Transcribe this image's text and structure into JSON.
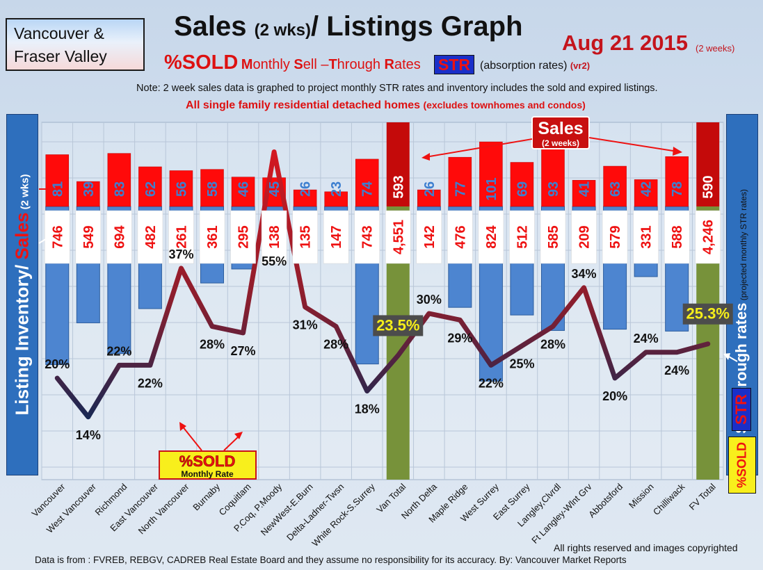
{
  "header": {
    "region_line1": "Vancouver &",
    "region_line2": "Fraser Valley",
    "title_part1": "Sales ",
    "title_small": "(2 wks)",
    "title_part2": "/ Listings Graph",
    "date": "Aug 21 2015",
    "date_note": "(2 weeks)",
    "subtitle_pct": "%SOLD",
    "subtitle_m": "M",
    "subtitle_onthly": "onthly ",
    "subtitle_s": "S",
    "subtitle_ell": "ell –",
    "subtitle_t": "T",
    "subtitle_hrough": "hrough ",
    "subtitle_r": "R",
    "subtitle_ates": "ates",
    "str_label": "STR",
    "absorption": "(absorption rates)",
    "version": "(vr2)",
    "note": "Note: 2 week sales data is graphed to project monthly STR rates and inventory includes the sold and expired listings.",
    "subnote_main": "All single family residential detached homes ",
    "subnote_small": "(excludes townhomes and condos)"
  },
  "axes": {
    "left_part1": "Listing Inventory/ ",
    "left_sales": "Sales",
    "left_small": " (2  wks)",
    "right_main": "Sell-through rates",
    "right_proj": " (projected monthly STR rates)",
    "right_str": "STR",
    "right_sold": "%SOLD"
  },
  "callouts": {
    "sales_title": "Sales",
    "sales_sub": "(2 weeks)",
    "sold_title": "%SOLD",
    "sold_sub": "Monthly Rate"
  },
  "footer": {
    "copyright": "All rights reserved and  images copyrighted",
    "source": "Data is from : FVREB, REBGV, CADREB Real Estate Board and they assume  no responsibility  for its accuracy. By: Vancouver Market Reports"
  },
  "colors": {
    "sales": "#ff0a0a",
    "sales_total": "#c40a0a",
    "inventory": "#4d85d0",
    "inventory_total": "#77923a",
    "line_high": "#c8202a",
    "line_low": "#1b2a55",
    "grid": "#b8c6d8"
  },
  "chart_data": {
    "type": "bar",
    "categories": [
      "Vancouver",
      "West Vancouver",
      "Richmond",
      "East Vancouver",
      "North Vancouver",
      "Burnaby",
      "Coquitlam",
      "P.Coq, P.Moody",
      "NewWest-E.Burn",
      "Delta-Ladner-Twsn",
      "White Rock-S.Surrey",
      "Van Total",
      "North Delta",
      "Maple Ridge",
      "West Surrey",
      "East Surrey",
      "Langley,Clvrdl",
      "Ft Langley-Wlnt Grv",
      "Abbotsford",
      "Mission",
      "Chilliwack",
      "FV Total"
    ],
    "series": [
      {
        "name": "Sales",
        "values": [
          81,
          39,
          83,
          62,
          56,
          58,
          46,
          45,
          26,
          23,
          74,
          593,
          26,
          77,
          101,
          69,
          93,
          41,
          63,
          42,
          78,
          590
        ]
      },
      {
        "name": "Listing Inventory",
        "values": [
          "746",
          "549",
          "694",
          "482",
          "261",
          "361",
          "295",
          "138",
          "135",
          "147",
          "743",
          "4,551",
          "142",
          "476",
          "824",
          "512",
          "585",
          "209",
          "579",
          "331",
          "588",
          "4,246"
        ],
        "numeric": [
          746,
          549,
          694,
          482,
          261,
          361,
          295,
          138,
          135,
          147,
          743,
          4551,
          142,
          476,
          824,
          512,
          585,
          209,
          579,
          331,
          588,
          4246
        ]
      },
      {
        "name": "%SOLD",
        "values": [
          "20%",
          "14%",
          "22%",
          "22%",
          "37%",
          "28%",
          "27%",
          "55%",
          "31%",
          "28%",
          "18%",
          "23.5%",
          "30%",
          "29%",
          "22%",
          "25%",
          "28%",
          "34%",
          "20%",
          "24%",
          "24%",
          "25.3%"
        ],
        "numeric": [
          20,
          14,
          22,
          22,
          37,
          28,
          27,
          55,
          31,
          28,
          18,
          23.5,
          30,
          29,
          22,
          25,
          28,
          34,
          20,
          24,
          24,
          25.3
        ]
      }
    ],
    "grid": true
  }
}
